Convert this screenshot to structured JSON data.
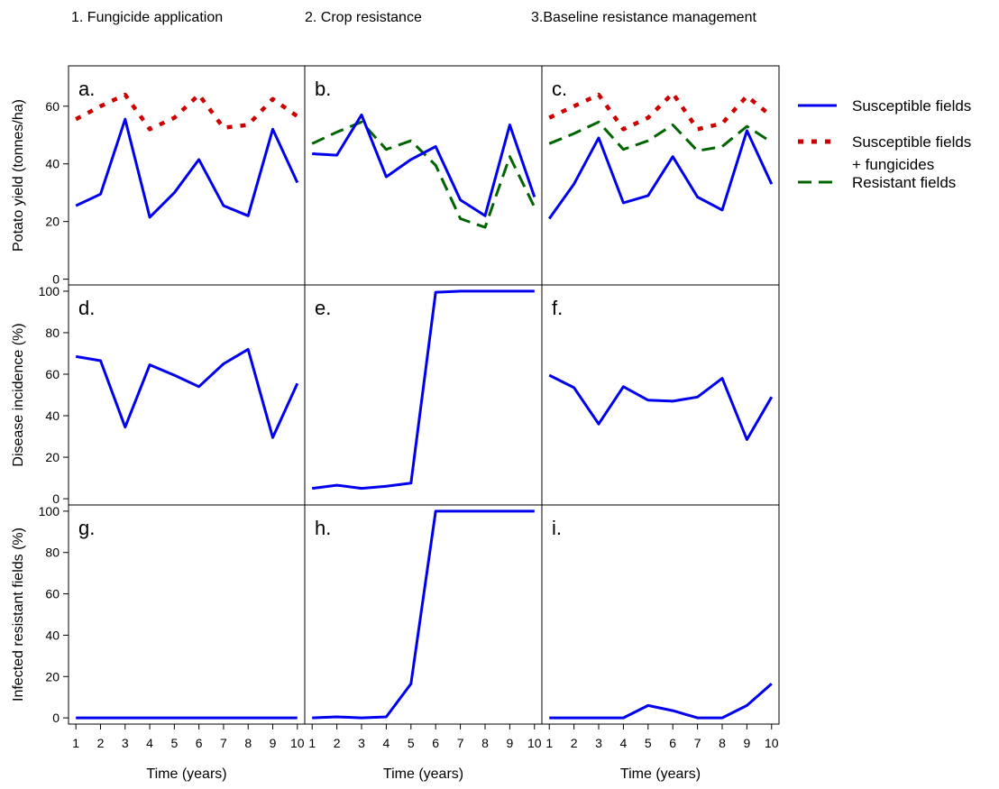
{
  "columns": [
    "1. Fungicide application",
    "2. Crop resistance",
    "3.Baseline resistance management"
  ],
  "row_ylabels": [
    "Potato yield (tonnes/ha)",
    "Disease incidence (%)",
    "Infected resistant fields (%)"
  ],
  "xlabel": "Time (years)",
  "legend": {
    "position": "right",
    "items": [
      {
        "label_lines": [
          "Susceptible fields"
        ],
        "style": "solid",
        "color": "#0000ee"
      },
      {
        "label_lines": [
          "Susceptible fields",
          "+ fungicides"
        ],
        "style": "dotted",
        "color": "#cc0000"
      },
      {
        "label_lines": [
          "Resistant fields"
        ],
        "style": "dashed",
        "color": "#006400"
      }
    ]
  },
  "colors": {
    "susceptible": "#0000ee",
    "fungicides": "#cc0000",
    "resistant": "#006400"
  },
  "chart_data": [
    {
      "type": "line",
      "panel": "a.",
      "row": 0,
      "col": 0,
      "ylim": [
        -2,
        74
      ],
      "yticks": [
        0,
        20,
        40,
        60
      ],
      "x": [
        1,
        2,
        3,
        4,
        5,
        6,
        7,
        8,
        9,
        10
      ],
      "xticks": [
        "1",
        "2",
        "3",
        "4",
        "5",
        "6",
        "7",
        "8",
        "9",
        "10"
      ],
      "series": [
        {
          "style": "solid",
          "color": "#0000ee",
          "values": [
            25.5,
            29.5,
            55.5,
            21.5,
            30,
            41.5,
            25.5,
            22,
            52,
            33.5
          ]
        },
        {
          "style": "dotted",
          "color": "#cc0000",
          "values": [
            55.5,
            60,
            64,
            52,
            56,
            64,
            52.5,
            53.5,
            62.5,
            56.5
          ]
        }
      ]
    },
    {
      "type": "line",
      "panel": "b.",
      "row": 0,
      "col": 1,
      "ylim": [
        -2,
        74
      ],
      "yticks": [],
      "x": [
        1,
        2,
        3,
        4,
        5,
        6,
        7,
        8,
        9,
        10
      ],
      "xticks": [
        "1",
        "2",
        "3",
        "4",
        "5",
        "6",
        "7",
        "8",
        "9",
        "10"
      ],
      "series": [
        {
          "style": "solid",
          "color": "#0000ee",
          "values": [
            43.5,
            43,
            57,
            35.5,
            41.5,
            46,
            27.5,
            22,
            53.5,
            28.5
          ]
        },
        {
          "style": "dashed",
          "color": "#006400",
          "values": [
            47,
            51,
            54.5,
            45,
            48,
            39.5,
            21,
            18,
            42.5,
            25
          ]
        }
      ]
    },
    {
      "type": "line",
      "panel": "c.",
      "row": 0,
      "col": 2,
      "ylim": [
        -2,
        74
      ],
      "yticks": [],
      "x": [
        1,
        2,
        3,
        4,
        5,
        6,
        7,
        8,
        9,
        10
      ],
      "xticks": [
        "1",
        "2",
        "3",
        "4",
        "5",
        "6",
        "7",
        "8",
        "9",
        "10"
      ],
      "series": [
        {
          "style": "solid",
          "color": "#0000ee",
          "values": [
            21,
            33,
            49,
            26.5,
            29,
            42.5,
            28.5,
            24,
            51.5,
            33
          ]
        },
        {
          "style": "dotted",
          "color": "#cc0000",
          "values": [
            56,
            60,
            64,
            52,
            56,
            64.5,
            52,
            54,
            63.5,
            56.5
          ]
        },
        {
          "style": "dashed",
          "color": "#006400",
          "values": [
            47,
            50.5,
            54.5,
            45,
            48,
            53.5,
            44.5,
            46,
            53,
            47.5
          ]
        }
      ]
    },
    {
      "type": "line",
      "panel": "d.",
      "row": 1,
      "col": 0,
      "ylim": [
        -3,
        103
      ],
      "yticks": [
        0,
        20,
        40,
        60,
        80,
        100
      ],
      "x": [
        1,
        2,
        3,
        4,
        5,
        6,
        7,
        8,
        9,
        10
      ],
      "xticks": [
        "1",
        "2",
        "3",
        "4",
        "5",
        "6",
        "7",
        "8",
        "9",
        "10"
      ],
      "series": [
        {
          "style": "solid",
          "color": "#0000ee",
          "values": [
            68.5,
            66.5,
            34.5,
            64.5,
            59.5,
            54,
            65,
            72,
            29.5,
            55.5
          ]
        }
      ]
    },
    {
      "type": "line",
      "panel": "e.",
      "row": 1,
      "col": 1,
      "ylim": [
        -3,
        103
      ],
      "yticks": [],
      "x": [
        1,
        2,
        3,
        4,
        5,
        6,
        7,
        8,
        9,
        10
      ],
      "xticks": [
        "1",
        "2",
        "3",
        "4",
        "5",
        "6",
        "7",
        "8",
        "9",
        "10"
      ],
      "series": [
        {
          "style": "solid",
          "color": "#0000ee",
          "values": [
            5,
            6.5,
            5,
            6,
            7.5,
            99.5,
            100,
            100,
            100,
            100
          ]
        }
      ]
    },
    {
      "type": "line",
      "panel": "f.",
      "row": 1,
      "col": 2,
      "ylim": [
        -3,
        103
      ],
      "yticks": [],
      "x": [
        1,
        2,
        3,
        4,
        5,
        6,
        7,
        8,
        9,
        10
      ],
      "xticks": [
        "1",
        "2",
        "3",
        "4",
        "5",
        "6",
        "7",
        "8",
        "9",
        "10"
      ],
      "series": [
        {
          "style": "solid",
          "color": "#0000ee",
          "values": [
            59.5,
            53.5,
            36,
            54,
            47.5,
            47,
            49,
            58,
            28.5,
            49
          ]
        }
      ]
    },
    {
      "type": "line",
      "panel": "g.",
      "row": 2,
      "col": 0,
      "ylim": [
        -3,
        103
      ],
      "yticks": [
        0,
        20,
        40,
        60,
        80,
        100
      ],
      "x": [
        1,
        2,
        3,
        4,
        5,
        6,
        7,
        8,
        9,
        10
      ],
      "xticks": [
        "1",
        "2",
        "3",
        "4",
        "5",
        "6",
        "7",
        "8",
        "9",
        "10"
      ],
      "series": [
        {
          "style": "solid",
          "color": "#0000ee",
          "values": [
            0,
            0,
            0,
            0,
            0,
            0,
            0,
            0,
            0,
            0
          ]
        }
      ]
    },
    {
      "type": "line",
      "panel": "h.",
      "row": 2,
      "col": 1,
      "ylim": [
        -3,
        103
      ],
      "yticks": [],
      "x": [
        1,
        2,
        3,
        4,
        5,
        6,
        7,
        8,
        9,
        10
      ],
      "xticks": [
        "1",
        "2",
        "3",
        "4",
        "5",
        "6",
        "7",
        "8",
        "9",
        "10"
      ],
      "series": [
        {
          "style": "solid",
          "color": "#0000ee",
          "values": [
            0,
            0.5,
            0,
            0.5,
            16.5,
            100,
            100,
            100,
            100,
            100
          ]
        }
      ]
    },
    {
      "type": "line",
      "panel": "i.",
      "row": 2,
      "col": 2,
      "ylim": [
        -3,
        103
      ],
      "yticks": [],
      "x": [
        1,
        2,
        3,
        4,
        5,
        6,
        7,
        8,
        9,
        10
      ],
      "xticks": [
        "1",
        "2",
        "3",
        "4",
        "5",
        "6",
        "7",
        "8",
        "9",
        "10"
      ],
      "series": [
        {
          "style": "solid",
          "color": "#0000ee",
          "values": [
            0,
            0,
            0,
            0,
            6,
            3.5,
            0,
            0,
            6,
            16.5
          ]
        }
      ]
    }
  ]
}
